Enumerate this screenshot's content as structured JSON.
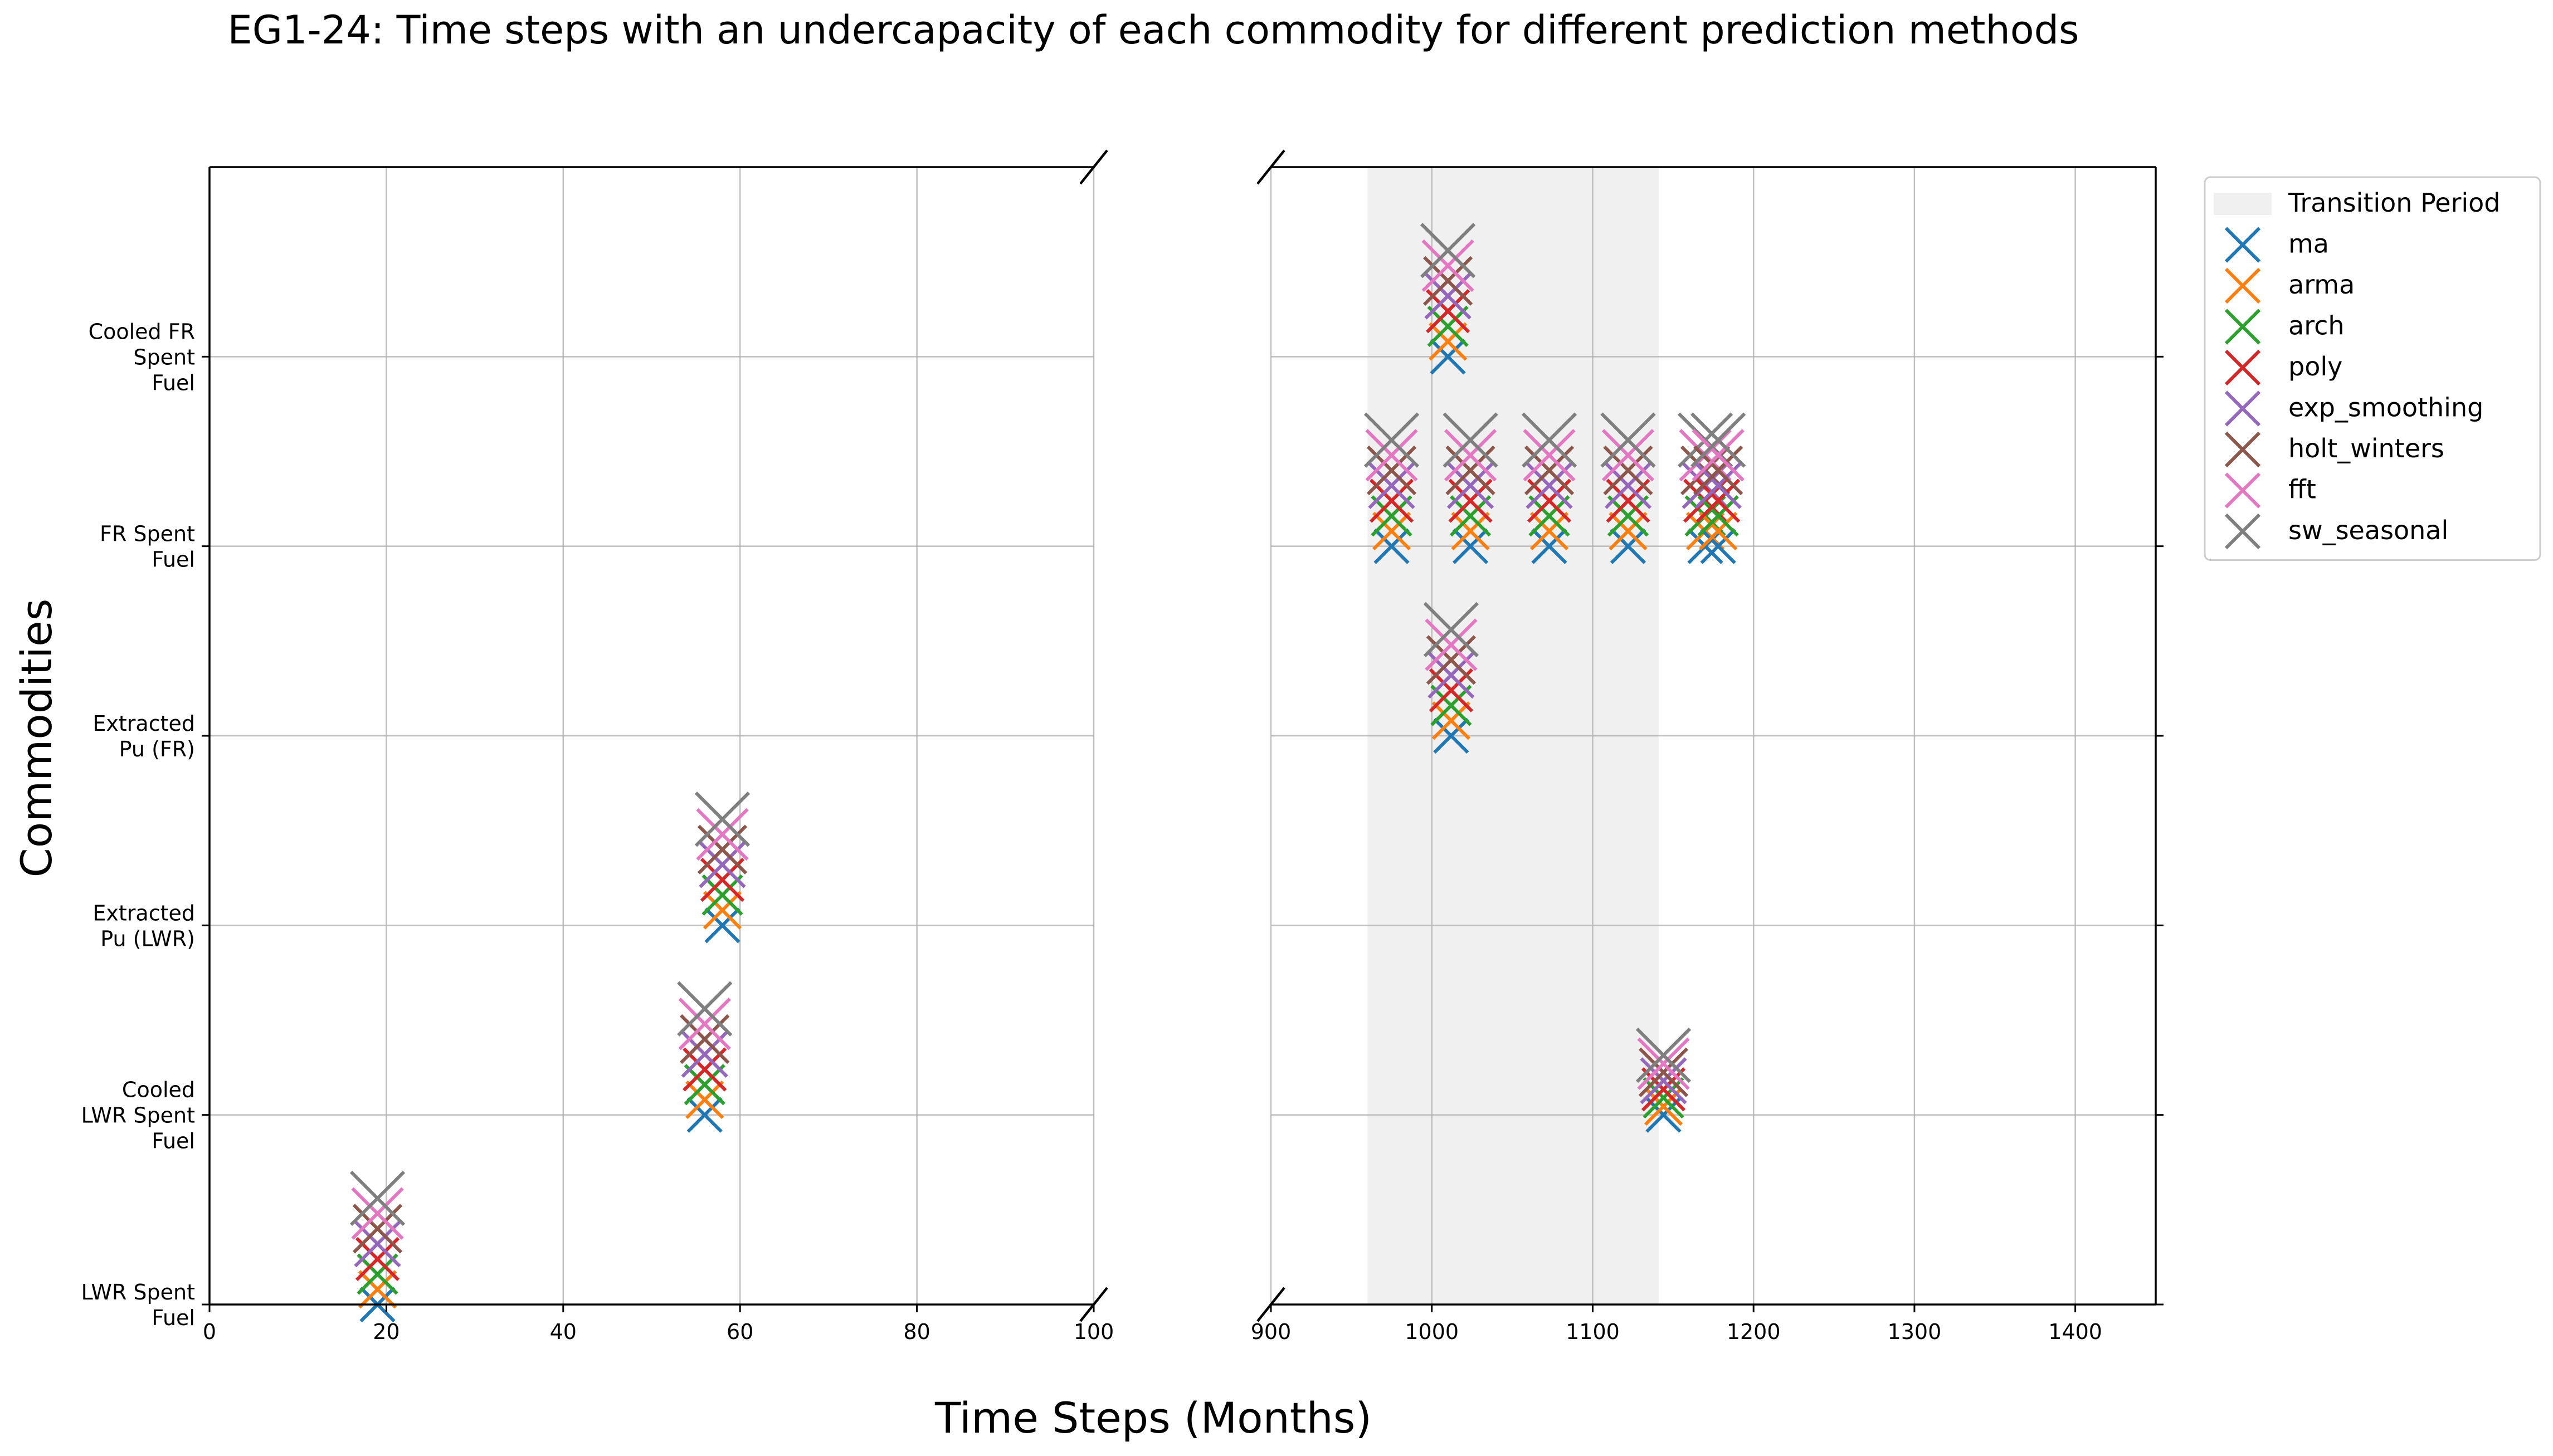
{
  "chart_data": {
    "type": "scatter",
    "title": "EG1-24: Time steps with an undercapacity of each commodity for different prediction methods",
    "xlabel": "Time Steps (Months)",
    "ylabel": "Commodities",
    "broken_x_axis": true,
    "panels": [
      {
        "xlim": [
          0,
          100
        ],
        "xticks": [
          0,
          20,
          40,
          60,
          80,
          100
        ]
      },
      {
        "xlim": [
          900,
          1450
        ],
        "xticks": [
          900,
          1000,
          1100,
          1200,
          1300,
          1400
        ]
      }
    ],
    "ylim": [
      0,
      6
    ],
    "categories": [
      [
        "LWR Spent",
        "Fuel"
      ],
      [
        "Cooled",
        "LWR Spent",
        "Fuel"
      ],
      [
        "Extracted",
        "Pu (LWR)"
      ],
      [
        "Extracted",
        "Pu (FR)"
      ],
      [
        "FR Spent",
        "Fuel"
      ],
      [
        "Cooled FR",
        "Spent",
        "Fuel"
      ]
    ],
    "transition_period": {
      "label": "Transition Period",
      "range": [
        960,
        1141
      ],
      "color": "#f0f0f0"
    },
    "grid": true,
    "legend_position": "outside upper right",
    "series": [
      {
        "name": "ma",
        "color": "#1f77b4"
      },
      {
        "name": "arma",
        "color": "#ff7f0e"
      },
      {
        "name": "arch",
        "color": "#2ca02c"
      },
      {
        "name": "poly",
        "color": "#d62728"
      },
      {
        "name": "exp_smoothing",
        "color": "#9467bd"
      },
      {
        "name": "holt_winters",
        "color": "#8c564b"
      },
      {
        "name": "fft",
        "color": "#e377c2"
      },
      {
        "name": "sw_seasonal",
        "color": "#7f7f7f"
      }
    ],
    "point_groups": [
      {
        "x": 19,
        "y": 0,
        "offset": 0.08
      },
      {
        "x": 56,
        "y": 1,
        "offset": 0.08
      },
      {
        "x": 58,
        "y": 2,
        "offset": 0.08
      },
      {
        "x": 1012,
        "y": 3,
        "offset": 0.08
      },
      {
        "x": 1010,
        "y": 5,
        "offset": 0.08
      },
      {
        "x": 1144,
        "y": 1,
        "offset": 0.045
      },
      {
        "x": 975,
        "y": 4,
        "offset": 0.08
      },
      {
        "x": 1024,
        "y": 4,
        "offset": 0.08
      },
      {
        "x": 1073,
        "y": 4,
        "offset": 0.08
      },
      {
        "x": 1122,
        "y": 4,
        "offset": 0.08
      },
      {
        "x": 1170,
        "y": 4,
        "offset": 0.08
      },
      {
        "x": 1178,
        "y": 4,
        "offset": 0.08
      }
    ]
  }
}
